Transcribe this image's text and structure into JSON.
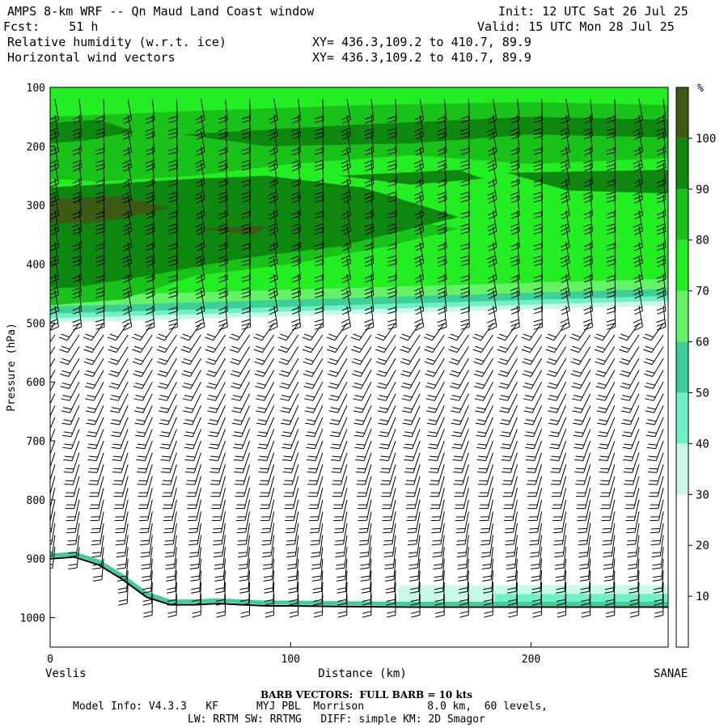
{
  "header": {
    "title_line": "AMPS 8-km WRF -- Qn Maud Land Coast window",
    "fcst_line": "Fcst:    51 h",
    "field1": "Relative humidity (w.r.t. ice)",
    "field2": "Horizontal wind vectors",
    "init_line": "Init: 12 UTC Sat 26 Jul 25",
    "valid_line": "Valid: 15 UTC Mon 28 Jul 25",
    "xy1": "XY= 436.3,109.2 to 410.7, 89.9",
    "xy2": "XY= 436.3,109.2 to 410.7, 89.9"
  },
  "footer": {
    "barb_note": "BARB VECTORS:  FULL BARB = 10 kts",
    "model_info": "Model Info: V4.3.3   KF      MYJ PBL  Morrison          8.0 km,  60 levels,",
    "model_info2": "LW: RRTM SW: RRTMG   DIFF: simple KM: 2D Smagor"
  },
  "chart_data": {
    "type": "heatmap",
    "ylabel": "Pressure (hPa)",
    "xlabel": "Distance (km)",
    "x_left_label": "Veslis",
    "x_right_label": "SANAE",
    "x_ticks": [
      0,
      100,
      200
    ],
    "y_ticks": [
      100,
      200,
      300,
      400,
      500,
      600,
      700,
      800,
      900,
      1000
    ],
    "xlim": [
      0,
      257
    ],
    "ylim": [
      1050,
      100
    ],
    "colorbar": {
      "unit": "%",
      "ticks": [
        10,
        20,
        30,
        40,
        50,
        60,
        70,
        80,
        90,
        100
      ],
      "bins": [
        {
          "from": 0,
          "to": 30,
          "color": "#ffffff"
        },
        {
          "from": 30,
          "to": 40,
          "color": "#c8fae4"
        },
        {
          "from": 40,
          "to": 50,
          "color": "#6ef0c8"
        },
        {
          "from": 50,
          "to": 60,
          "color": "#3ccf98"
        },
        {
          "from": 60,
          "to": 70,
          "color": "#66f266"
        },
        {
          "from": 70,
          "to": 80,
          "color": "#22ee22"
        },
        {
          "from": 80,
          "to": 90,
          "color": "#18c218"
        },
        {
          "from": 90,
          "to": 100,
          "color": "#0e870e"
        },
        {
          "from": 100,
          "to": 110,
          "color": "#3c5a14"
        }
      ]
    },
    "moist_layer": {
      "top_hpa": 100,
      "base_hpa_left": 500,
      "base_hpa_right": 470
    },
    "dry_layer": {
      "top_hpa": 500,
      "bottom_hpa": 980
    },
    "near_surface_moist": {
      "x_from_km": 145,
      "x_to_km": 257,
      "top_hpa": 930
    },
    "terrain": {
      "x": [
        0,
        10,
        20,
        30,
        40,
        50,
        60,
        70,
        80,
        90,
        100,
        120,
        150,
        200,
        257
      ],
      "p": [
        900,
        897,
        910,
        935,
        965,
        978,
        978,
        976,
        978,
        980,
        980,
        981,
        982,
        982,
        982
      ]
    },
    "barbs": {
      "columns": 26,
      "levels_upper": 14,
      "levels_lower": 24
    }
  }
}
